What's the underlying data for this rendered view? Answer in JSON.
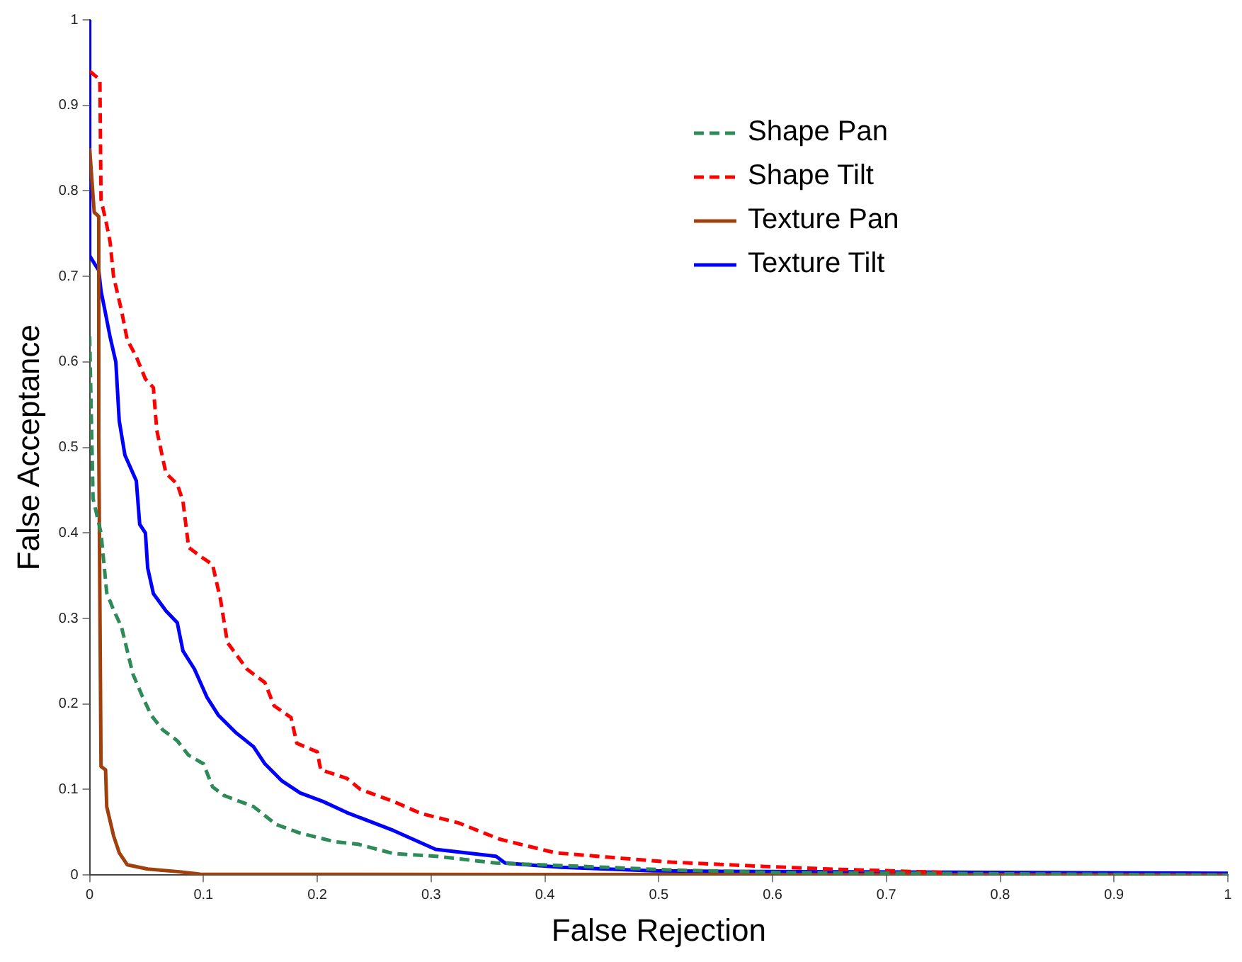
{
  "chart_data": {
    "type": "line",
    "xlabel": "False Rejection",
    "ylabel": "False Acceptance",
    "xlim": [
      0,
      1
    ],
    "ylim": [
      0,
      1
    ],
    "xticks": [
      0,
      0.1,
      0.2,
      0.3,
      0.4,
      0.5,
      0.6,
      0.7,
      0.8,
      0.9,
      1
    ],
    "yticks": [
      0,
      0.1,
      0.2,
      0.3,
      0.4,
      0.5,
      0.6,
      0.7,
      0.8,
      0.9,
      1
    ],
    "grid": false,
    "legend": "top right",
    "marker": "none",
    "series": [
      {
        "name": "Shape Pan",
        "color": "#2e8b57",
        "line_style": "dashed",
        "x": [
          0,
          0.003,
          0.01,
          0.015,
          0.021,
          0.028,
          0.038,
          0.046,
          0.054,
          0.064,
          0.077,
          0.087,
          0.1,
          0.108,
          0.118,
          0.144,
          0.164,
          0.185,
          0.215,
          0.236,
          0.267,
          0.304,
          0.357,
          0.454,
          0.508,
          0.6,
          1
        ],
        "values": [
          0.63,
          0.44,
          0.4,
          0.33,
          0.31,
          0.29,
          0.235,
          0.21,
          0.187,
          0.17,
          0.157,
          0.14,
          0.13,
          0.103,
          0.093,
          0.08,
          0.059,
          0.049,
          0.039,
          0.036,
          0.025,
          0.022,
          0.014,
          0.009,
          0.006,
          0.003,
          0
        ]
      },
      {
        "name": "Shape Tilt",
        "color": "#ff0000",
        "line_style": "dashed",
        "x": [
          0,
          0.009,
          0.01,
          0.015,
          0.018,
          0.021,
          0.028,
          0.033,
          0.041,
          0.049,
          0.056,
          0.059,
          0.067,
          0.077,
          0.082,
          0.087,
          0.097,
          0.108,
          0.115,
          0.121,
          0.138,
          0.154,
          0.162,
          0.177,
          0.182,
          0.2,
          0.203,
          0.226,
          0.238,
          0.267,
          0.291,
          0.324,
          0.36,
          0.409,
          0.454,
          0.511,
          0.593,
          0.65,
          0.75
        ],
        "values": [
          0.94,
          0.93,
          0.79,
          0.76,
          0.74,
          0.7,
          0.66,
          0.626,
          0.606,
          0.58,
          0.57,
          0.52,
          0.47,
          0.457,
          0.437,
          0.383,
          0.373,
          0.363,
          0.322,
          0.272,
          0.241,
          0.225,
          0.198,
          0.184,
          0.154,
          0.144,
          0.123,
          0.113,
          0.1,
          0.086,
          0.072,
          0.061,
          0.042,
          0.026,
          0.021,
          0.015,
          0.01,
          0.007,
          0.003
        ]
      },
      {
        "name": "Texture Pan",
        "color": "#a0410d",
        "line_style": "solid",
        "x": [
          0,
          0.004,
          0.008,
          0.008,
          0.01,
          0.014,
          0.015,
          0.021,
          0.026,
          0.033,
          0.051,
          0.077,
          0.097,
          1
        ],
        "values": [
          0.85,
          0.775,
          0.77,
          0.51,
          0.127,
          0.123,
          0.08,
          0.046,
          0.026,
          0.012,
          0.007,
          0.004,
          0.001,
          0
        ]
      },
      {
        "name": "Texture Tilt",
        "color": "#0000ff",
        "line_style": "solid",
        "x": [
          0,
          0,
          0.008,
          0.01,
          0.013,
          0.018,
          0.023,
          0.026,
          0.031,
          0.041,
          0.044,
          0.049,
          0.051,
          0.056,
          0.067,
          0.077,
          0.082,
          0.092,
          0.103,
          0.113,
          0.128,
          0.144,
          0.154,
          0.169,
          0.185,
          0.205,
          0.226,
          0.267,
          0.304,
          0.357,
          0.365,
          0.414,
          0.495,
          0.593,
          1
        ],
        "values": [
          1,
          0.724,
          0.707,
          0.683,
          0.663,
          0.629,
          0.6,
          0.531,
          0.491,
          0.461,
          0.41,
          0.4,
          0.359,
          0.329,
          0.309,
          0.295,
          0.262,
          0.241,
          0.208,
          0.187,
          0.167,
          0.15,
          0.13,
          0.11,
          0.096,
          0.086,
          0.073,
          0.052,
          0.03,
          0.022,
          0.014,
          0.009,
          0.005,
          0.004,
          0.002
        ]
      }
    ]
  }
}
